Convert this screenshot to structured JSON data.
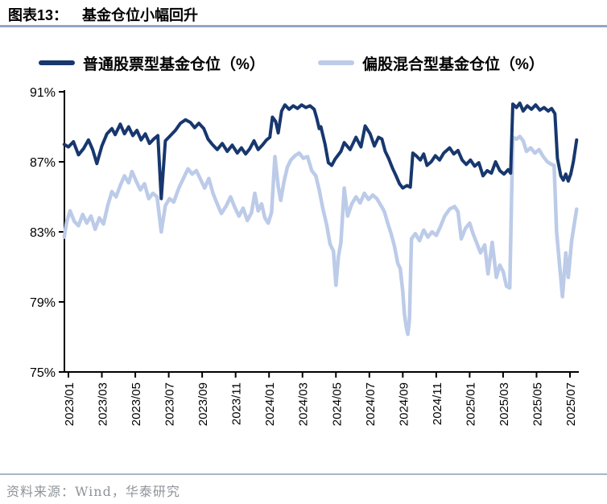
{
  "header": {
    "figure_label": "图表13：",
    "title": "基金仓位小幅回升"
  },
  "legend": [
    {
      "id": "ordinary-stock-fund",
      "label": "普通股票型基金仓位（%）",
      "color": "#17376e"
    },
    {
      "id": "partial-equity-hybrid-fund",
      "label": "偏股混合型基金仓位（%）",
      "color": "#bccbe8"
    }
  ],
  "footer": {
    "source": "资料来源：Wind，华泰研究"
  },
  "colors": {
    "accent_rule": "#92a7c6",
    "footer_rule": "#a9b6c3",
    "axis": "#000000",
    "dark_series": "#17376e",
    "light_series": "#bccbe8"
  },
  "chart_data": {
    "type": "line",
    "title": "基金仓位小幅回升",
    "xlabel": "",
    "ylabel": "",
    "ylim": [
      75,
      91
    ],
    "y_ticks": [
      75,
      79,
      83,
      87,
      91
    ],
    "y_tick_labels": [
      "75%",
      "79%",
      "83%",
      "87%",
      "91%"
    ],
    "x_tick_labels": [
      "2023/01",
      "2023/03",
      "2023/05",
      "2023/07",
      "2023/09",
      "2023/11",
      "2024/01",
      "2024/03",
      "2024/05",
      "2024/07",
      "2024/09",
      "2024/11",
      "2025/01",
      "2025/03",
      "2025/05",
      "2025/07"
    ],
    "x_unit": "months since 2023/01 (tick every 2 months)",
    "grid": false,
    "legend_position": "top",
    "series": [
      {
        "id": "ordinary-stock-fund",
        "name": "普通股票型基金仓位（%）",
        "color": "#17376e",
        "stroke_width": 4,
        "points": [
          [
            -0.25,
            88.0
          ],
          [
            0.0,
            87.85
          ],
          [
            0.3,
            88.15
          ],
          [
            0.6,
            87.4
          ],
          [
            0.9,
            87.75
          ],
          [
            1.2,
            88.25
          ],
          [
            1.45,
            87.7
          ],
          [
            1.7,
            86.9
          ],
          [
            2.0,
            87.9
          ],
          [
            2.3,
            88.6
          ],
          [
            2.6,
            88.9
          ],
          [
            2.8,
            88.55
          ],
          [
            3.1,
            89.15
          ],
          [
            3.35,
            88.6
          ],
          [
            3.6,
            89.0
          ],
          [
            3.85,
            88.5
          ],
          [
            4.1,
            88.8
          ],
          [
            4.35,
            88.25
          ],
          [
            4.6,
            88.6
          ],
          [
            4.85,
            88.05
          ],
          [
            5.1,
            88.3
          ],
          [
            5.35,
            88.5
          ],
          [
            5.55,
            84.9
          ],
          [
            5.8,
            88.2
          ],
          [
            6.1,
            88.5
          ],
          [
            6.4,
            88.8
          ],
          [
            6.7,
            89.2
          ],
          [
            7.0,
            89.4
          ],
          [
            7.3,
            89.25
          ],
          [
            7.55,
            88.95
          ],
          [
            7.8,
            89.2
          ],
          [
            8.1,
            88.9
          ],
          [
            8.35,
            88.3
          ],
          [
            8.6,
            88.0
          ],
          [
            8.9,
            87.7
          ],
          [
            9.2,
            88.05
          ],
          [
            9.5,
            87.6
          ],
          [
            9.8,
            87.95
          ],
          [
            10.1,
            87.5
          ],
          [
            10.35,
            87.8
          ],
          [
            10.6,
            87.45
          ],
          [
            10.85,
            87.75
          ],
          [
            11.1,
            88.2
          ],
          [
            11.35,
            87.7
          ],
          [
            11.6,
            87.95
          ],
          [
            11.85,
            88.25
          ],
          [
            12.05,
            88.4
          ],
          [
            12.2,
            89.55
          ],
          [
            12.4,
            89.3
          ],
          [
            12.55,
            88.65
          ],
          [
            12.75,
            89.9
          ],
          [
            12.95,
            90.25
          ],
          [
            13.2,
            90.0
          ],
          [
            13.45,
            90.2
          ],
          [
            13.7,
            90.05
          ],
          [
            13.95,
            90.25
          ],
          [
            14.2,
            90.1
          ],
          [
            14.45,
            90.2
          ],
          [
            14.7,
            90.0
          ],
          [
            14.85,
            89.5
          ],
          [
            15.0,
            88.9
          ],
          [
            15.1,
            89.0
          ],
          [
            15.35,
            88.0
          ],
          [
            15.55,
            86.95
          ],
          [
            15.75,
            86.8
          ],
          [
            15.95,
            87.15
          ],
          [
            16.3,
            87.6
          ],
          [
            16.5,
            88.1
          ],
          [
            16.85,
            87.7
          ],
          [
            17.2,
            88.4
          ],
          [
            17.5,
            87.85
          ],
          [
            17.75,
            89.05
          ],
          [
            18.05,
            88.6
          ],
          [
            18.3,
            87.9
          ],
          [
            18.55,
            88.4
          ],
          [
            18.75,
            88.3
          ],
          [
            18.95,
            87.6
          ],
          [
            19.15,
            87.2
          ],
          [
            19.4,
            86.6
          ],
          [
            19.6,
            86.2
          ],
          [
            19.8,
            85.75
          ],
          [
            20.0,
            85.5
          ],
          [
            20.25,
            85.65
          ],
          [
            20.45,
            85.55
          ],
          [
            20.6,
            87.5
          ],
          [
            20.8,
            87.35
          ],
          [
            21.05,
            87.1
          ],
          [
            21.25,
            87.45
          ],
          [
            21.45,
            86.8
          ],
          [
            21.7,
            87.0
          ],
          [
            21.95,
            87.35
          ],
          [
            22.2,
            87.1
          ],
          [
            22.45,
            87.5
          ],
          [
            22.8,
            87.8
          ],
          [
            23.05,
            87.45
          ],
          [
            23.3,
            87.65
          ],
          [
            23.55,
            87.1
          ],
          [
            23.8,
            86.85
          ],
          [
            24.05,
            87.1
          ],
          [
            24.3,
            86.75
          ],
          [
            24.55,
            86.95
          ],
          [
            24.8,
            86.2
          ],
          [
            25.05,
            86.5
          ],
          [
            25.3,
            86.35
          ],
          [
            25.55,
            87.0
          ],
          [
            25.8,
            86.5
          ],
          [
            26.05,
            86.3
          ],
          [
            26.3,
            86.55
          ],
          [
            26.45,
            86.35
          ],
          [
            26.58,
            90.3
          ],
          [
            26.8,
            90.1
          ],
          [
            27.0,
            90.35
          ],
          [
            27.2,
            89.9
          ],
          [
            27.45,
            90.2
          ],
          [
            27.7,
            90.0
          ],
          [
            27.95,
            90.25
          ],
          [
            28.2,
            89.95
          ],
          [
            28.45,
            90.1
          ],
          [
            28.7,
            89.9
          ],
          [
            28.9,
            90.05
          ],
          [
            29.1,
            89.75
          ],
          [
            29.25,
            87.2
          ],
          [
            29.45,
            86.2
          ],
          [
            29.6,
            85.95
          ],
          [
            29.75,
            86.3
          ],
          [
            29.9,
            85.9
          ],
          [
            30.05,
            86.3
          ],
          [
            30.2,
            87.0
          ],
          [
            30.4,
            88.25
          ]
        ]
      },
      {
        "id": "partial-equity-hybrid-fund",
        "name": "偏股混合型基金仓位（%）",
        "color": "#bccbe8",
        "stroke_width": 4.5,
        "points": [
          [
            -0.25,
            82.7
          ],
          [
            -0.1,
            83.6
          ],
          [
            0.1,
            84.2
          ],
          [
            0.35,
            83.6
          ],
          [
            0.6,
            83.35
          ],
          [
            0.85,
            84.0
          ],
          [
            1.1,
            83.5
          ],
          [
            1.35,
            83.9
          ],
          [
            1.6,
            83.15
          ],
          [
            1.85,
            83.8
          ],
          [
            2.1,
            83.45
          ],
          [
            2.35,
            84.5
          ],
          [
            2.6,
            85.3
          ],
          [
            2.85,
            85.0
          ],
          [
            3.1,
            85.65
          ],
          [
            3.35,
            86.2
          ],
          [
            3.6,
            85.8
          ],
          [
            3.8,
            86.45
          ],
          [
            4.05,
            85.9
          ],
          [
            4.3,
            85.4
          ],
          [
            4.55,
            85.75
          ],
          [
            4.8,
            84.9
          ],
          [
            5.05,
            85.2
          ],
          [
            5.3,
            85.0
          ],
          [
            5.55,
            83.0
          ],
          [
            5.8,
            84.5
          ],
          [
            6.05,
            84.9
          ],
          [
            6.3,
            84.7
          ],
          [
            6.6,
            85.5
          ],
          [
            6.9,
            86.1
          ],
          [
            7.15,
            86.6
          ],
          [
            7.4,
            86.3
          ],
          [
            7.65,
            86.5
          ],
          [
            7.9,
            86.0
          ],
          [
            8.15,
            85.5
          ],
          [
            8.4,
            86.05
          ],
          [
            8.65,
            85.2
          ],
          [
            8.9,
            84.6
          ],
          [
            9.15,
            84.05
          ],
          [
            9.45,
            84.5
          ],
          [
            9.7,
            85.0
          ],
          [
            9.95,
            84.4
          ],
          [
            10.2,
            83.9
          ],
          [
            10.45,
            84.35
          ],
          [
            10.7,
            83.65
          ],
          [
            10.95,
            84.1
          ],
          [
            11.15,
            85.2
          ],
          [
            11.35,
            84.2
          ],
          [
            11.55,
            84.6
          ],
          [
            11.75,
            83.8
          ],
          [
            11.95,
            83.5
          ],
          [
            12.15,
            84.1
          ],
          [
            12.35,
            87.3
          ],
          [
            12.55,
            85.6
          ],
          [
            12.7,
            84.8
          ],
          [
            12.9,
            85.9
          ],
          [
            13.1,
            86.7
          ],
          [
            13.3,
            87.1
          ],
          [
            13.55,
            87.35
          ],
          [
            13.8,
            87.5
          ],
          [
            14.05,
            87.2
          ],
          [
            14.3,
            87.3
          ],
          [
            14.55,
            86.5
          ],
          [
            14.8,
            86.2
          ],
          [
            15.0,
            85.4
          ],
          [
            15.2,
            84.4
          ],
          [
            15.45,
            83.4
          ],
          [
            15.65,
            82.3
          ],
          [
            15.85,
            81.9
          ],
          [
            16.0,
            79.95
          ],
          [
            16.15,
            81.6
          ],
          [
            16.3,
            82.4
          ],
          [
            16.5,
            85.5
          ],
          [
            16.7,
            83.9
          ],
          [
            16.95,
            84.6
          ],
          [
            17.2,
            85.0
          ],
          [
            17.45,
            84.65
          ],
          [
            17.7,
            85.2
          ],
          [
            17.95,
            84.85
          ],
          [
            18.2,
            85.1
          ],
          [
            18.45,
            84.9
          ],
          [
            18.7,
            84.5
          ],
          [
            18.9,
            84.15
          ],
          [
            19.1,
            83.5
          ],
          [
            19.3,
            82.9
          ],
          [
            19.5,
            82.2
          ],
          [
            19.7,
            81.2
          ],
          [
            19.85,
            80.9
          ],
          [
            20.0,
            79.6
          ],
          [
            20.1,
            78.3
          ],
          [
            20.2,
            77.6
          ],
          [
            20.3,
            77.15
          ],
          [
            20.4,
            78.0
          ],
          [
            20.52,
            82.6
          ],
          [
            20.75,
            82.9
          ],
          [
            21.0,
            82.5
          ],
          [
            21.25,
            83.1
          ],
          [
            21.5,
            82.7
          ],
          [
            21.75,
            83.0
          ],
          [
            22.0,
            82.8
          ],
          [
            22.25,
            83.3
          ],
          [
            22.5,
            83.9
          ],
          [
            22.8,
            84.3
          ],
          [
            23.1,
            84.45
          ],
          [
            23.3,
            84.15
          ],
          [
            23.5,
            82.6
          ],
          [
            23.75,
            83.2
          ],
          [
            24.0,
            83.5
          ],
          [
            24.2,
            82.9
          ],
          [
            24.45,
            82.3
          ],
          [
            24.65,
            81.8
          ],
          [
            24.9,
            82.25
          ],
          [
            25.1,
            80.6
          ],
          [
            25.35,
            82.4
          ],
          [
            25.6,
            80.4
          ],
          [
            25.8,
            81.1
          ],
          [
            26.0,
            80.75
          ],
          [
            26.2,
            79.9
          ],
          [
            26.4,
            79.8
          ],
          [
            26.58,
            88.4
          ],
          [
            26.8,
            88.3
          ],
          [
            27.0,
            88.45
          ],
          [
            27.2,
            88.2
          ],
          [
            27.4,
            87.6
          ],
          [
            27.65,
            87.8
          ],
          [
            27.9,
            87.5
          ],
          [
            28.15,
            87.7
          ],
          [
            28.4,
            87.3
          ],
          [
            28.65,
            87.0
          ],
          [
            28.9,
            86.85
          ],
          [
            29.05,
            86.8
          ],
          [
            29.2,
            83.0
          ],
          [
            29.4,
            80.9
          ],
          [
            29.55,
            79.3
          ],
          [
            29.75,
            81.8
          ],
          [
            29.9,
            80.4
          ],
          [
            30.1,
            82.5
          ],
          [
            30.4,
            84.3
          ]
        ]
      }
    ]
  }
}
